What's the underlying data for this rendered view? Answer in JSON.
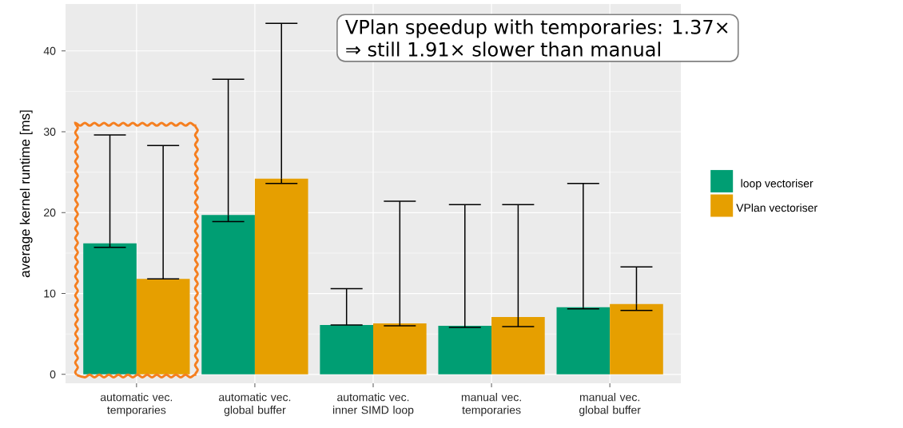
{
  "chart_data": {
    "type": "bar",
    "ylabel": "average kernel runtime [ms]",
    "categories": [
      "automatic vec. temporaries",
      "automatic vec. global buffer",
      "automatic vec. inner SIMD loop",
      "manual vec. temporaries",
      "manual vec. global buffer"
    ],
    "series": [
      {
        "name": "loop vectoriser",
        "color": "#009e73",
        "values": [
          16.2,
          19.7,
          6.1,
          6.0,
          8.3
        ],
        "errors": [
          [
            15.7,
            29.6
          ],
          [
            18.9,
            36.5
          ],
          [
            6.1,
            10.6
          ],
          [
            5.8,
            21.0
          ],
          [
            8.1,
            23.6
          ]
        ]
      },
      {
        "name": "VPlan vectoriser",
        "color": "#e69f00",
        "values": [
          11.8,
          24.2,
          6.3,
          7.1,
          8.7
        ],
        "errors": [
          [
            11.8,
            28.3
          ],
          [
            23.6,
            43.4
          ],
          [
            6.0,
            21.4
          ],
          [
            5.9,
            21.0
          ],
          [
            7.9,
            13.3
          ]
        ]
      }
    ],
    "ylim": [
      -1.1,
      45.8
    ],
    "yticks": [
      0,
      10,
      20,
      30,
      40
    ],
    "grid": true,
    "legend": "right",
    "annotations": [
      "VPlan speedup with temporaries: 1.37×",
      "⇒ still 1.91× slower than manual"
    ]
  }
}
